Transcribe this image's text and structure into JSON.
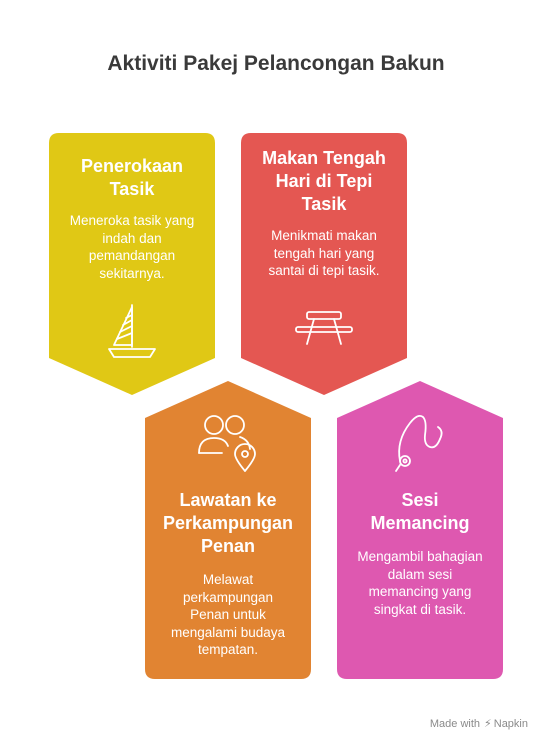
{
  "title": "Aktiviti Pakej Pelancongan Bakun",
  "cards": [
    {
      "heading_lines": [
        "Penerokaan",
        "Tasik"
      ],
      "description_lines": [
        "Meneroka tasik yang",
        "indah dan",
        "pemandangan",
        "sekitarnya."
      ],
      "color": "#e0c815",
      "icon": "sailboat-icon"
    },
    {
      "heading_lines": [
        "Makan Tengah",
        "Hari di Tepi",
        "Tasik"
      ],
      "description_lines": [
        "Menikmati makan",
        "tengah hari yang",
        "santai di tepi tasik."
      ],
      "color": "#e45752",
      "icon": "picnic-table-icon"
    },
    {
      "heading_lines": [
        "Lawatan ke",
        "Perkampungan",
        "Penan"
      ],
      "description_lines": [
        "Melawat",
        "perkampungan",
        "Penan untuk",
        "mengalami budaya",
        "tempatan."
      ],
      "color": "#e18432",
      "icon": "people-location-icon"
    },
    {
      "heading_lines": [
        "Sesi",
        "Memancing"
      ],
      "description_lines": [
        "Mengambil bahagian",
        "dalam sesi",
        "memancing yang",
        "singkat di tasik."
      ],
      "color": "#de58b0",
      "icon": "fishing-rod-icon"
    }
  ],
  "footer": {
    "made_with": "Made with",
    "brand": "Napkin"
  }
}
